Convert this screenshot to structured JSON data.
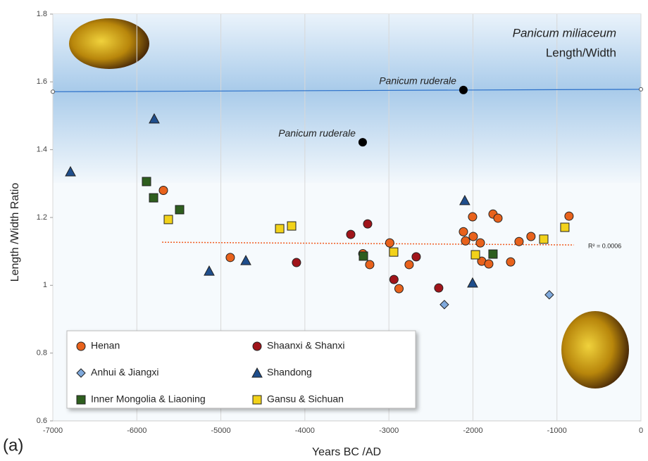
{
  "chart_data": {
    "type": "scatter",
    "title": "Panicum miliaceum",
    "subtitle": "Length/Width",
    "x_label": "Years BC /AD",
    "y_label": "Length /Width Ratio",
    "panel_label": "(a)",
    "xlim": [
      -7000,
      0
    ],
    "ylim": [
      0.6,
      1.8
    ],
    "xticks": [
      -7000,
      -6000,
      -5000,
      -4000,
      -3000,
      -2000,
      -1000,
      0
    ],
    "yticks": [
      0.6,
      0.8,
      1,
      1.2,
      1.4,
      1.6,
      1.8
    ],
    "grid": "x",
    "series": [
      {
        "name": "Henan",
        "color": "#e8621c",
        "marker": "circle",
        "x": [
          -5684,
          -4888,
          -3310,
          -3228,
          -2990,
          -2880,
          -2759,
          -2113,
          -2088,
          -2004,
          -1996,
          -1912,
          -1895,
          -1811,
          -1761,
          -1702,
          -1551,
          -1451,
          -1309,
          -856
        ],
        "values": [
          1.28,
          1.082,
          1.093,
          1.061,
          1.125,
          0.99,
          1.061,
          1.158,
          1.131,
          1.202,
          1.144,
          1.125,
          1.071,
          1.063,
          1.21,
          1.198,
          1.069,
          1.129,
          1.144,
          1.204
        ]
      },
      {
        "name": "Shaanxi & Shanxi",
        "color": "#a0141a",
        "marker": "circle",
        "x": [
          -4100,
          -3454,
          -3253,
          -2940,
          -2675,
          -2407
        ],
        "values": [
          1.067,
          1.15,
          1.181,
          1.017,
          1.084,
          0.992
        ]
      },
      {
        "name": "Anhui & Jiangxi",
        "color": "#7fa9dc",
        "marker": "diamond",
        "x": [
          -2340,
          -1091
        ],
        "values": [
          0.943,
          0.972
        ]
      },
      {
        "name": "Shandong",
        "color": "#1f4e8c",
        "marker": "triangle",
        "x": [
          -6790,
          -5793,
          -5139,
          -4703,
          -2097,
          -2004
        ],
        "values": [
          1.335,
          1.491,
          1.042,
          1.073,
          1.25,
          1.007
        ]
      },
      {
        "name": "Inner Mongolia & Liaoning",
        "color": "#2e5e1e",
        "marker": "square",
        "x": [
          -5885,
          -5801,
          -5491,
          -3303,
          -1761
        ],
        "values": [
          1.306,
          1.258,
          1.223,
          1.086,
          1.092
        ]
      },
      {
        "name": "Gansu & Sichuan",
        "color": "#f2d21a",
        "marker": "square",
        "x": [
          -5625,
          -4300,
          -4158,
          -2943,
          -1970,
          -1157,
          -906
        ],
        "values": [
          1.194,
          1.167,
          1.175,
          1.098,
          1.09,
          1.136,
          1.171
        ]
      }
    ],
    "reference_points": {
      "label": "Panicum ruderale",
      "color": "#000000",
      "x": [
        -3312,
        -2113
      ],
      "values": [
        1.422,
        1.576
      ]
    },
    "reference_line": {
      "color": "#2a6fc9",
      "x": [
        -7000,
        0
      ],
      "values": [
        1.571,
        1.578
      ]
    },
    "trend_line": {
      "color": "#f05a1e",
      "label": "R² = 0.0006",
      "x": [
        -5700,
        -800
      ],
      "values": [
        1.127,
        1.119
      ]
    }
  }
}
